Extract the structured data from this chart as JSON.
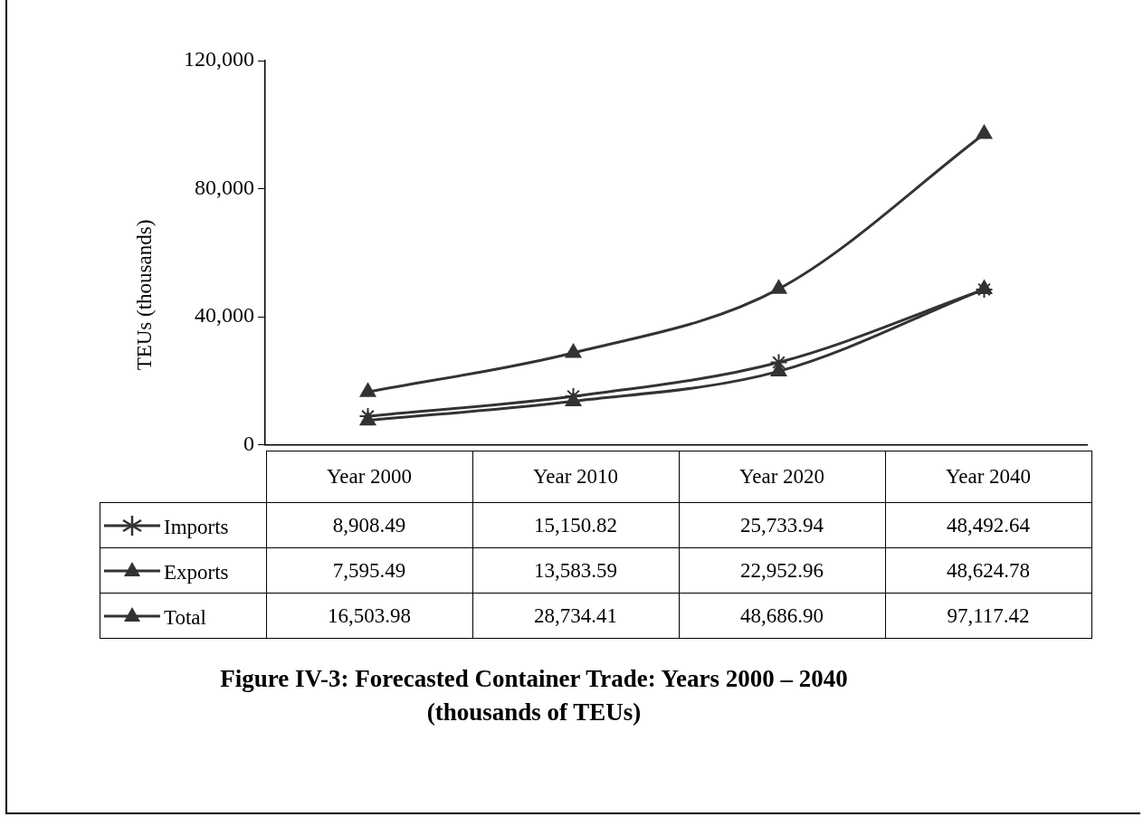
{
  "chart_data": {
    "type": "line",
    "title": "Figure IV-3: Forecasted Container Trade: Years 2000 – 2040 (thousands of TEUs)",
    "ylabel": "TEUs (thousands)",
    "categories": [
      "Year 2000",
      "Year 2010",
      "Year 2020",
      "Year 2040"
    ],
    "series": [
      {
        "name": "Imports",
        "color": "#333333",
        "marker": "cross",
        "values": [
          8908.49,
          15150.82,
          25733.94,
          48492.64
        ],
        "value_labels": [
          "8,908.49",
          "15,150.82",
          "25,733.94",
          "48,492.64"
        ]
      },
      {
        "name": "Exports",
        "color": "#333333",
        "marker": "triangle",
        "values": [
          7595.49,
          13583.59,
          22952.96,
          48624.78
        ],
        "value_labels": [
          "7,595.49",
          "13,583.59",
          "22,952.96",
          "48,624.78"
        ]
      },
      {
        "name": "Total",
        "color": "#333333",
        "marker": "triangle",
        "values": [
          16503.98,
          28734.41,
          48686.9,
          97117.42
        ],
        "value_labels": [
          "16,503.98",
          "28,734.41",
          "48,686.90",
          "97,117.42"
        ]
      }
    ],
    "ylim": [
      0,
      120000
    ],
    "yticks": [
      {
        "value": 0,
        "label": "0"
      },
      {
        "value": 40000,
        "label": "40,000"
      },
      {
        "value": 80000,
        "label": "80,000"
      },
      {
        "value": 120000,
        "label": "120,000"
      }
    ],
    "legend": "bottom"
  }
}
